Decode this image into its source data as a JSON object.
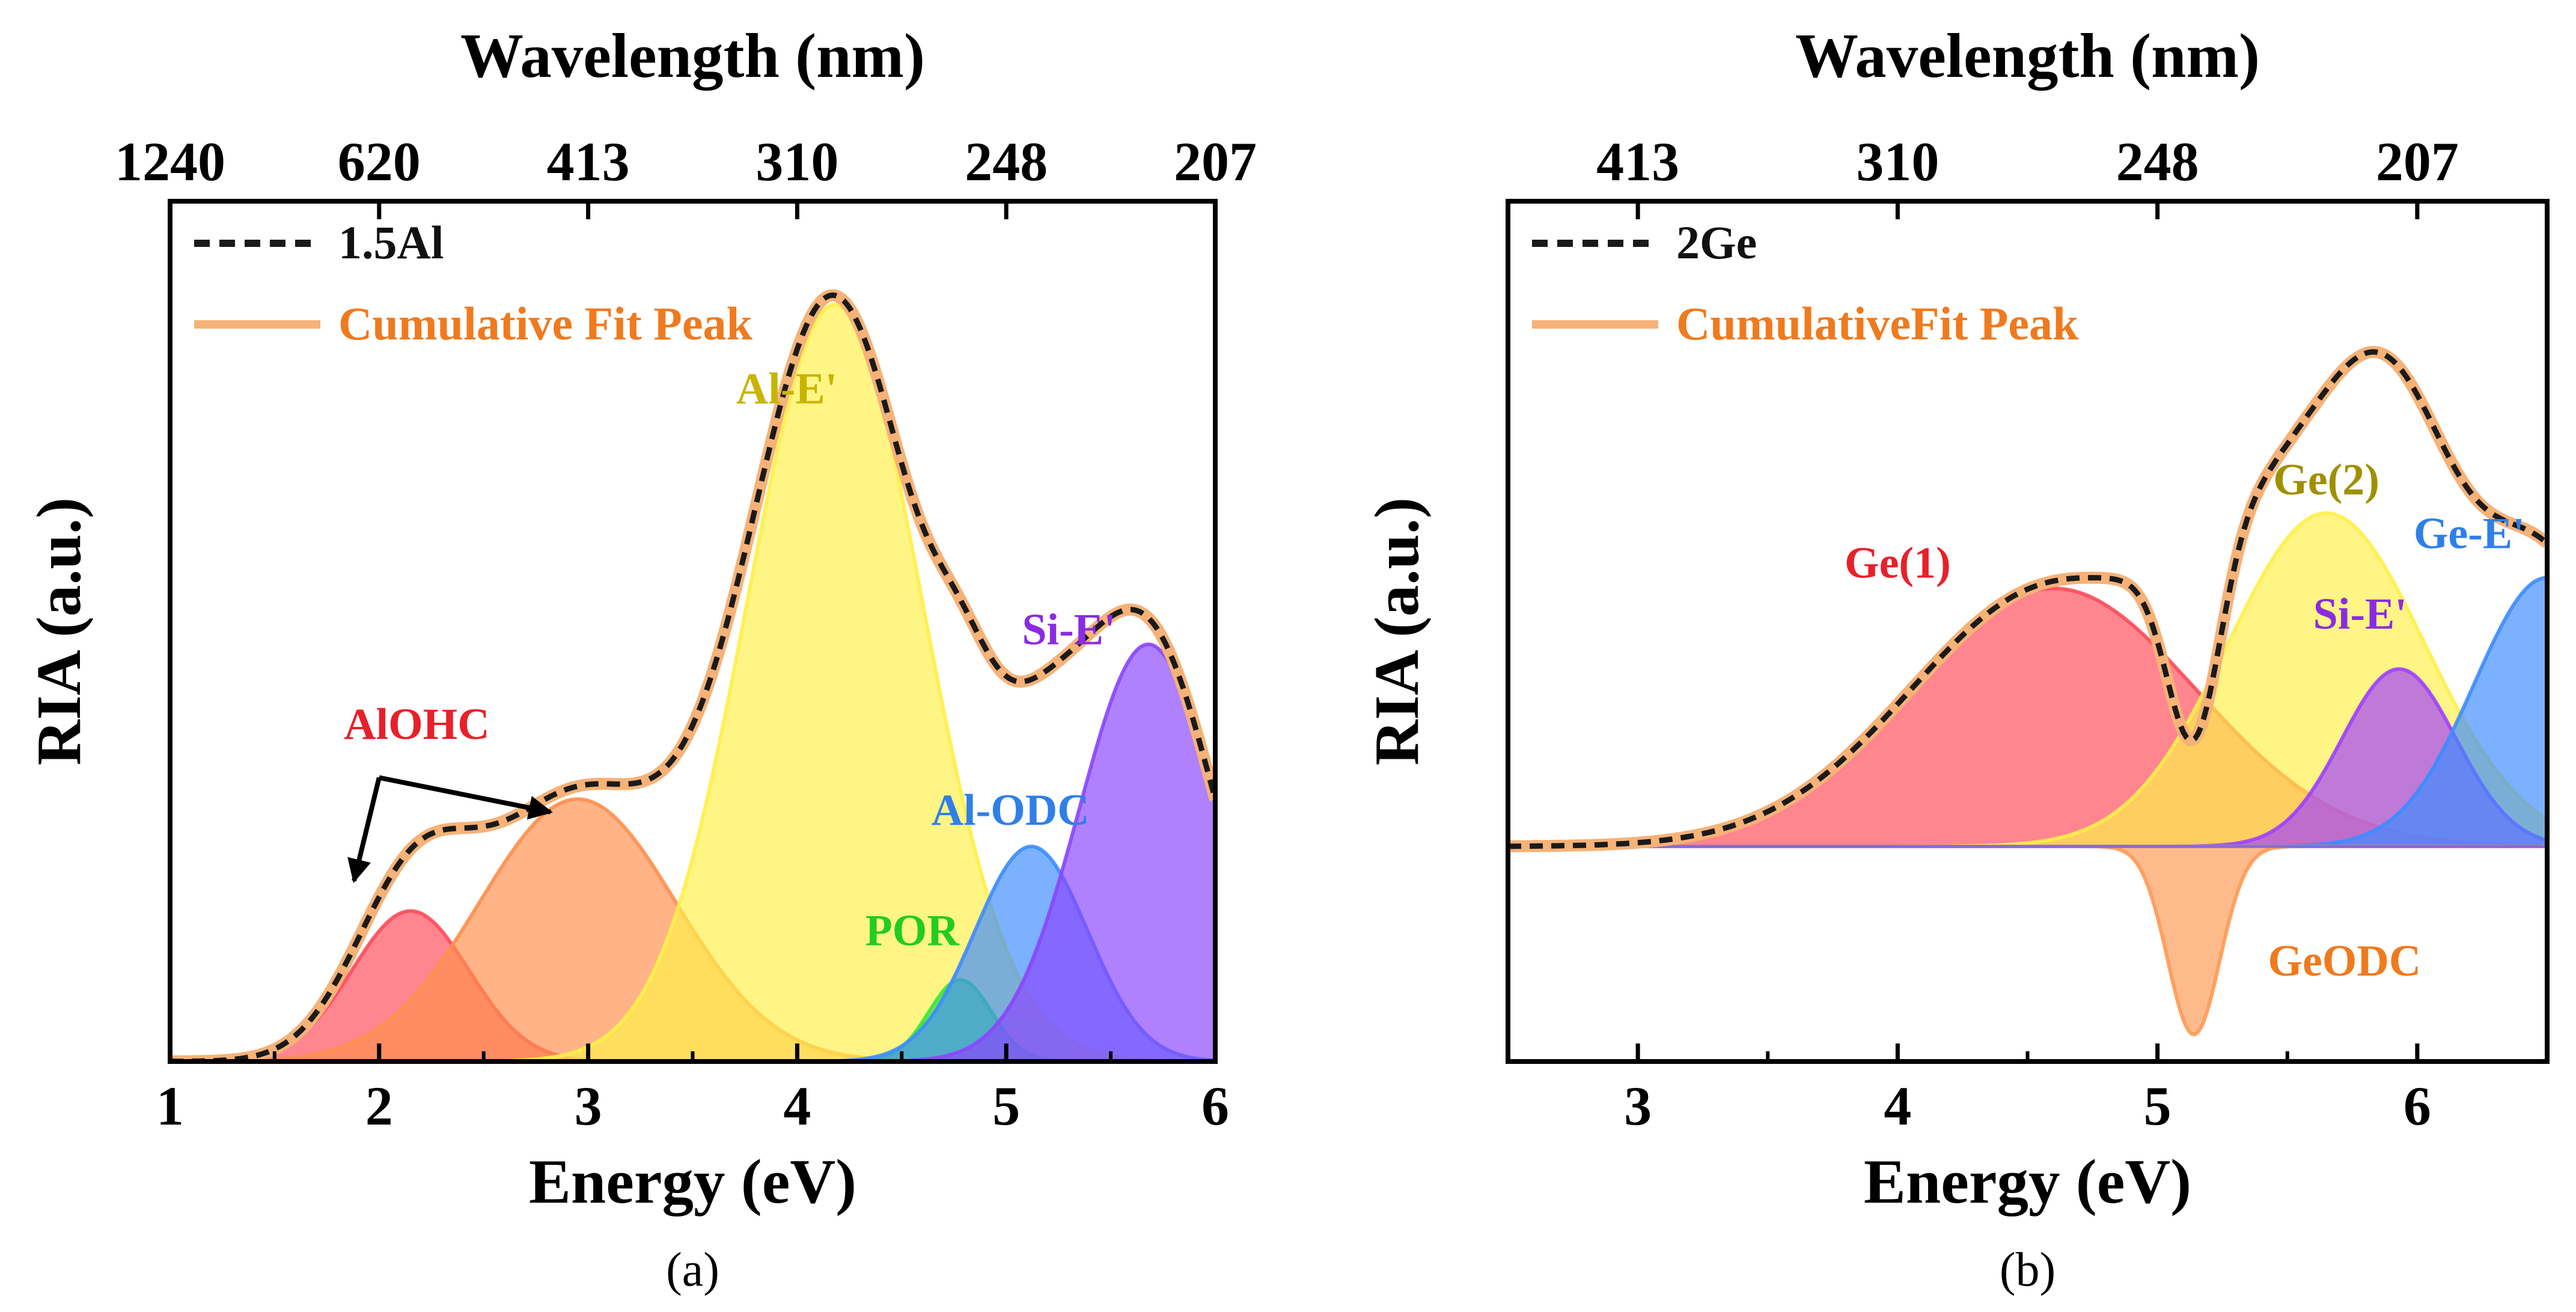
{
  "chart_data": [
    {
      "id": "a",
      "type": "area",
      "caption": "(a)",
      "title": "",
      "xlabel": "Energy (eV)",
      "ylabel": "RIA (a.u.)",
      "top_xlabel": "Wavelength (nm)",
      "xlim": [
        1,
        6
      ],
      "ylim": [
        0,
        1.0
      ],
      "x_ticks": [
        1,
        2,
        3,
        4,
        5,
        6
      ],
      "x_tick_labels": [
        "1",
        "2",
        "3",
        "4",
        "5",
        "6"
      ],
      "top_ticks": [
        {
          "energy": 1.0,
          "label": "1240"
        },
        {
          "energy": 2.0,
          "label": "620"
        },
        {
          "energy": 3.0,
          "label": "413"
        },
        {
          "energy": 4.0,
          "label": "310"
        },
        {
          "energy": 5.0,
          "label": "248"
        },
        {
          "energy": 6.0,
          "label": "207"
        }
      ],
      "legend": {
        "position": "top-left",
        "entries": [
          {
            "name": "1.5Al",
            "style": "dashed",
            "color": "#1a1a1a"
          },
          {
            "name": "Cumulative Fit Peak",
            "style": "solid",
            "color": "#f6b277",
            "text_color": "#f07a1e"
          }
        ]
      },
      "series": [
        {
          "name": "AlOHC",
          "center": 2.15,
          "amplitude": 0.175,
          "sigma": 0.28,
          "fill": "#ff4b5a",
          "label_color": "#e8202a"
        },
        {
          "name": "AlOHC",
          "center": 2.95,
          "amplitude": 0.305,
          "sigma": 0.47,
          "fill": "#ff8f4d",
          "label_color": "#e8202a"
        },
        {
          "name": "Al-E'",
          "center": 4.18,
          "amplitude": 0.88,
          "sigma": 0.42,
          "fill": "#fff04a",
          "label_color": "#c8b400"
        },
        {
          "name": "POR",
          "center": 4.78,
          "amplitude": 0.095,
          "sigma": 0.15,
          "fill": "#36e83a",
          "label_color": "#22cc22"
        },
        {
          "name": "Al-ODC",
          "center": 5.12,
          "amplitude": 0.25,
          "sigma": 0.27,
          "fill": "#3d8cff",
          "label_color": "#2f7fe8"
        },
        {
          "name": "Si-E'",
          "center": 5.68,
          "amplitude": 0.485,
          "sigma": 0.33,
          "fill": "#8a46ff",
          "label_color": "#8a2be2"
        }
      ],
      "peak_labels": [
        {
          "text": "AlOHC",
          "color": "#e8202a",
          "energy": 2.18,
          "value": 0.375
        },
        {
          "text": "Al-E'",
          "color": "#c8b400",
          "energy": 3.95,
          "value": 0.765
        },
        {
          "text": "POR",
          "color": "#22cc22",
          "energy": 4.55,
          "value": 0.135
        },
        {
          "text": "Al-ODC",
          "color": "#2f7fe8",
          "energy": 5.02,
          "value": 0.275
        },
        {
          "text": "Si-E'",
          "color": "#8a2be2",
          "energy": 5.3,
          "value": 0.485
        }
      ],
      "arrows": [
        {
          "from": [
            2.0,
            0.33
          ],
          "to": [
            1.88,
            0.21
          ]
        },
        {
          "from": [
            2.0,
            0.33
          ],
          "to": [
            2.82,
            0.29
          ]
        }
      ]
    },
    {
      "id": "b",
      "type": "area",
      "caption": "(b)",
      "title": "",
      "xlabel": "Energy (eV)",
      "ylabel": "RIA (a.u.)",
      "top_xlabel": "Wavelength (nm)",
      "xlim": [
        2.5,
        6.5
      ],
      "ylim": [
        -0.4,
        1.2
      ],
      "x_ticks": [
        3,
        4,
        5,
        6
      ],
      "x_tick_labels": [
        "3",
        "4",
        "5",
        "6"
      ],
      "top_ticks": [
        {
          "energy": 3.0,
          "label": "413"
        },
        {
          "energy": 4.0,
          "label": "310"
        },
        {
          "energy": 5.0,
          "label": "248"
        },
        {
          "energy": 6.0,
          "label": "207"
        }
      ],
      "legend": {
        "position": "top-left",
        "entries": [
          {
            "name": "2Ge",
            "style": "dashed",
            "color": "#1a1a1a"
          },
          {
            "name": "CumulativeFit Peak",
            "style": "solid",
            "color": "#f6b277",
            "text_color": "#f07a1e"
          }
        ]
      },
      "series": [
        {
          "name": "Ge(1)",
          "center": 4.6,
          "amplitude": 0.48,
          "sigma": 0.55,
          "fill": "#ff4b5a",
          "label_color": "#e8202a"
        },
        {
          "name": "Ge(2)",
          "center": 5.65,
          "amplitude": 0.62,
          "sigma": 0.38,
          "fill": "#fff04a",
          "label_color": "#c8b400"
        },
        {
          "name": "Si-E'",
          "center": 5.93,
          "amplitude": 0.33,
          "sigma": 0.22,
          "fill": "#a040ff",
          "label_color": "#8a2be2"
        },
        {
          "name": "Ge-E'",
          "center": 6.5,
          "amplitude": 0.5,
          "sigma": 0.28,
          "fill": "#3d8cff",
          "label_color": "#2f7fe8"
        },
        {
          "name": "GeODC",
          "center": 5.14,
          "amplitude": -0.35,
          "sigma": 0.1,
          "fill": "#ff9a55",
          "label_color": "#f07a1e"
        }
      ],
      "peak_labels": [
        {
          "text": "Ge(1)",
          "color": "#e8202a",
          "energy": 4.0,
          "value": 0.5
        },
        {
          "text": "Ge(2)",
          "color": "#a09000",
          "energy": 5.65,
          "value": 0.655
        },
        {
          "text": "Ge-E'",
          "color": "#2f7fe8",
          "energy": 6.2,
          "value": 0.555
        },
        {
          "text": "Si-E'",
          "color": "#8a2be2",
          "energy": 5.78,
          "value": 0.405
        },
        {
          "text": "GeODC",
          "color": "#f07a1e",
          "energy": 5.72,
          "value": -0.24
        }
      ],
      "arrows": []
    }
  ]
}
